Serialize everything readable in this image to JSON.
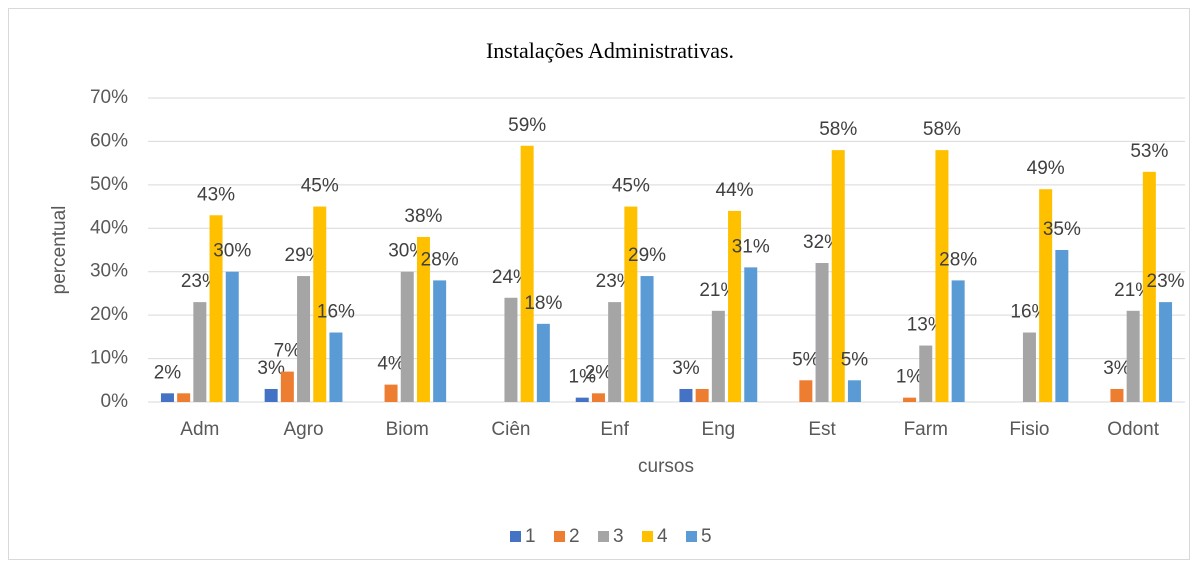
{
  "chart_data": {
    "type": "bar",
    "title": "Instalações Administrativas.",
    "x_label": "cursos",
    "y_label": "percentual",
    "categories": [
      "Adm",
      "Agro",
      "Biom",
      "Ciên",
      "Enf",
      "Eng",
      "Est",
      "Farm",
      "Fisio",
      "Odont"
    ],
    "series": [
      {
        "name": "1",
        "color": "#4472c4",
        "values": [
          2,
          3,
          null,
          null,
          1,
          3,
          null,
          null,
          null,
          null
        ],
        "value_labels": [
          "2%",
          "3%",
          null,
          null,
          "1%",
          "3%",
          null,
          null,
          null,
          null
        ]
      },
      {
        "name": "2",
        "color": "#ed7d31",
        "values": [
          2,
          7,
          4,
          null,
          2,
          3,
          5,
          1,
          null,
          3
        ],
        "value_labels": [
          null,
          "7%",
          "4%",
          null,
          "2%",
          null,
          "5%",
          "1%",
          null,
          "3%"
        ]
      },
      {
        "name": "3",
        "color": "#a5a5a5",
        "values": [
          23,
          29,
          30,
          24,
          23,
          21,
          32,
          13,
          16,
          21
        ],
        "value_labels": [
          "23%",
          "29%",
          "30%",
          "24%",
          "23%",
          "21%",
          "32%",
          "13%",
          "16%",
          "21%"
        ]
      },
      {
        "name": "4",
        "color": "#ffc000",
        "values": [
          43,
          45,
          38,
          59,
          45,
          44,
          58,
          58,
          49,
          53
        ],
        "value_labels": [
          "43%",
          "45%",
          "38%",
          "59%",
          "45%",
          "44%",
          "58%",
          "58%",
          "49%",
          "53%"
        ]
      },
      {
        "name": "5",
        "color": "#5b9bd5",
        "values": [
          30,
          16,
          28,
          18,
          29,
          31,
          5,
          28,
          35,
          23
        ],
        "value_labels": [
          "30%",
          "16%",
          "28%",
          "18%",
          "29%",
          "31%",
          "5%",
          "28%",
          "35%",
          "23%"
        ]
      }
    ],
    "ylim": [
      0,
      70
    ],
    "yticks": [
      {
        "value": 0,
        "label": "0%"
      },
      {
        "value": 10,
        "label": "10%"
      },
      {
        "value": 20,
        "label": "20%"
      },
      {
        "value": 30,
        "label": "30%"
      },
      {
        "value": 40,
        "label": "40%"
      },
      {
        "value": 50,
        "label": "50%"
      },
      {
        "value": 60,
        "label": "60%"
      },
      {
        "value": 70,
        "label": "70%"
      }
    ],
    "grid": true,
    "legend": "bottom"
  }
}
